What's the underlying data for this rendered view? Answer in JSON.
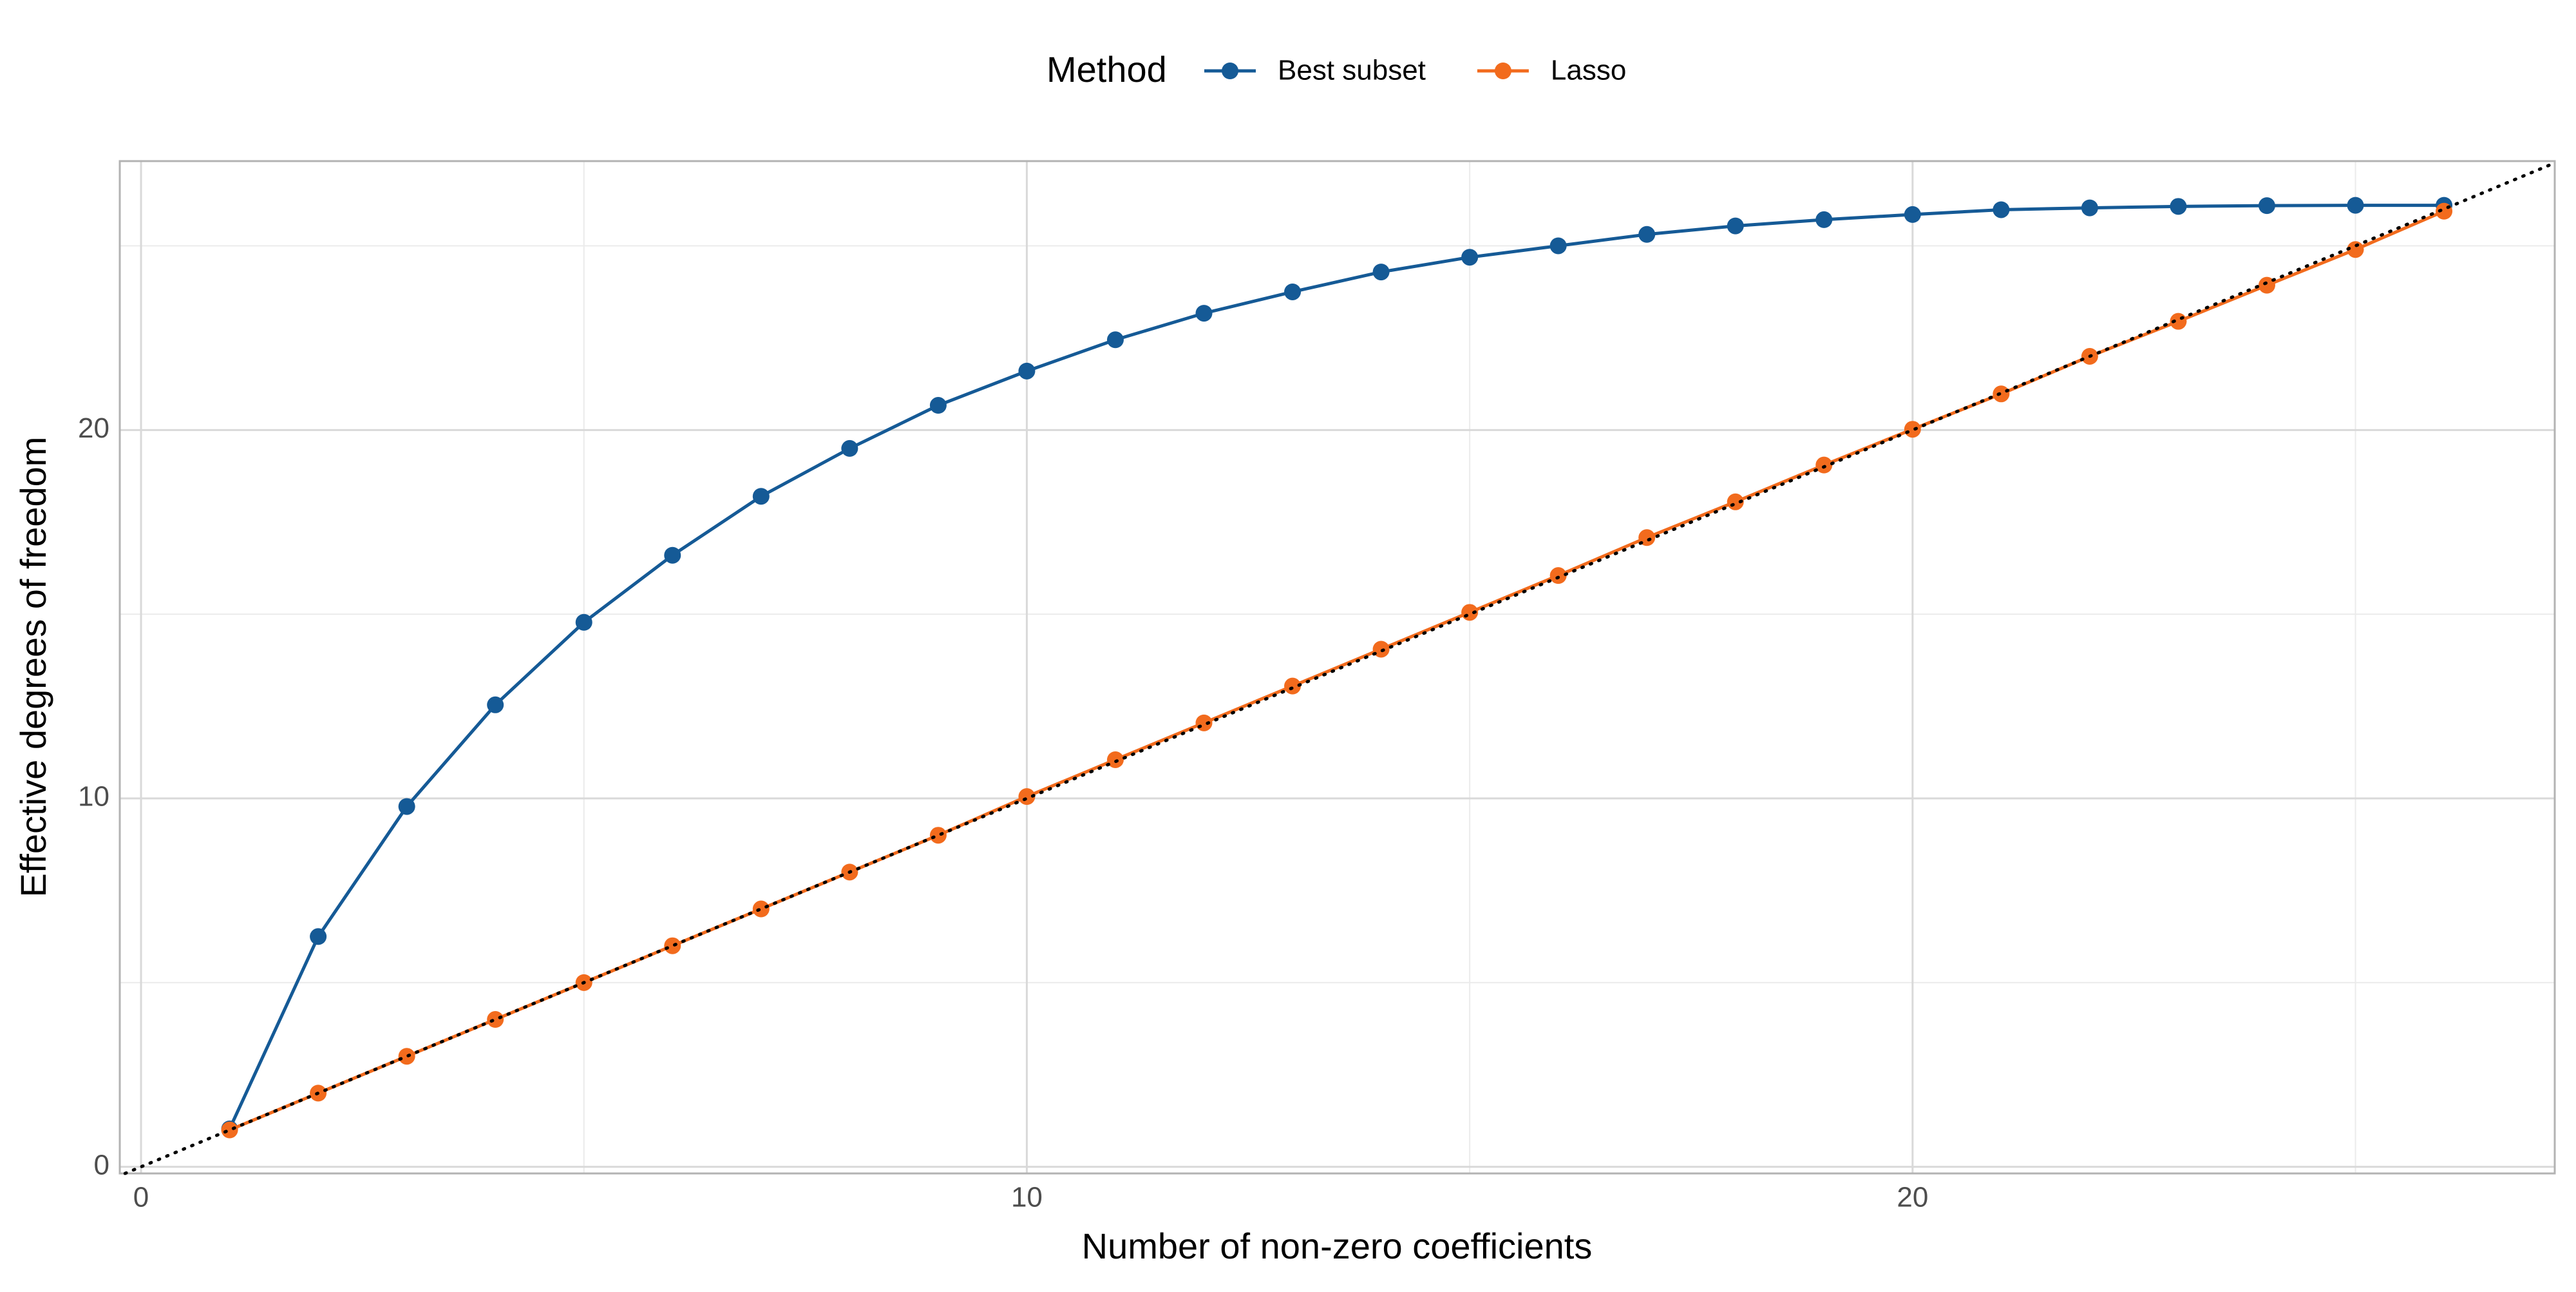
{
  "chart_data": {
    "type": "line",
    "x_label": "Number of non-zero coefficients",
    "y_label": "Effective degrees of freedom",
    "legend_title": "Method",
    "legend_position": "top",
    "x": [
      1,
      2,
      3,
      4,
      5,
      6,
      7,
      8,
      9,
      10,
      11,
      12,
      13,
      14,
      15,
      16,
      17,
      18,
      19,
      20,
      21,
      22,
      23,
      24,
      25,
      26
    ],
    "series": [
      {
        "name": "Best subset",
        "color": "#155a96",
        "values": [
          1.03,
          6.25,
          9.78,
          12.54,
          14.78,
          16.6,
          18.2,
          19.5,
          20.67,
          21.6,
          22.45,
          23.17,
          23.75,
          24.29,
          24.69,
          25.0,
          25.31,
          25.54,
          25.71,
          25.85,
          25.98,
          26.03,
          26.07,
          26.09,
          26.1,
          26.1
        ]
      },
      {
        "name": "Lasso",
        "color": "#f26b1d",
        "values": [
          1.0,
          2.0,
          3.0,
          4.0,
          5.0,
          6.0,
          7.0,
          8.0,
          9.0,
          10.05,
          11.05,
          12.05,
          13.05,
          14.05,
          15.05,
          16.05,
          17.08,
          18.05,
          19.05,
          20.02,
          20.98,
          22.0,
          22.95,
          23.93,
          24.9,
          25.94
        ]
      }
    ],
    "xlim": [
      -0.24,
      27.25
    ],
    "xticks": [
      0,
      10,
      20
    ],
    "ylim": [
      -0.18,
      27.3
    ],
    "yticks": [
      0,
      10,
      20
    ],
    "grid": true,
    "minor_grid": true,
    "identity_line": true
  }
}
